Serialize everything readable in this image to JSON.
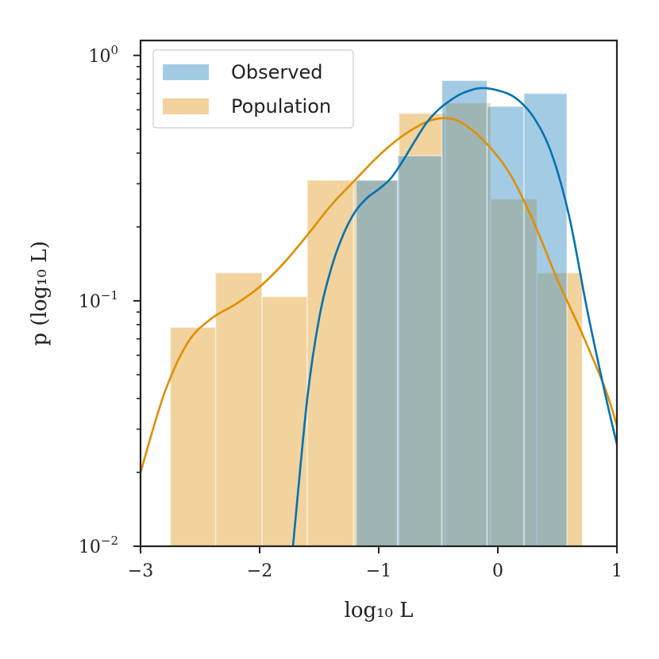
{
  "chart_data": {
    "type": "bar",
    "title": "",
    "xlabel": "log₁₀ L",
    "ylabel": "p (log₁₀ L)",
    "xlim": [
      -3,
      1
    ],
    "ylim": [
      0.01,
      1.15
    ],
    "yscale": "log",
    "grid": false,
    "legend_position": "top-left",
    "x_ticks": [
      {
        "value": -3,
        "label": "−3"
      },
      {
        "value": -2,
        "label": "−2"
      },
      {
        "value": -1,
        "label": "−1"
      },
      {
        "value": 0,
        "label": "0"
      },
      {
        "value": 1,
        "label": "1"
      }
    ],
    "y_ticks": [
      {
        "value": 0.01,
        "base": "10",
        "exp": "−2"
      },
      {
        "value": 0.1,
        "base": "10",
        "exp": "−1"
      },
      {
        "value": 1,
        "base": "10",
        "exp": "0"
      }
    ],
    "series": [
      {
        "name": "Population",
        "type": "histogram",
        "color": "#e6a63c",
        "opacity": 0.5,
        "bins": [
          {
            "x0": -2.75,
            "x1": -2.37,
            "y": 0.078
          },
          {
            "x0": -2.37,
            "x1": -1.98,
            "y": 0.13
          },
          {
            "x0": -1.98,
            "x1": -1.6,
            "y": 0.104
          },
          {
            "x0": -1.6,
            "x1": -1.21,
            "y": 0.31
          },
          {
            "x0": -1.21,
            "x1": -0.83,
            "y": 0.31
          },
          {
            "x0": -0.83,
            "x1": -0.44,
            "y": 0.58
          },
          {
            "x0": -0.44,
            "x1": -0.06,
            "y": 0.64
          },
          {
            "x0": -0.06,
            "x1": 0.33,
            "y": 0.26
          },
          {
            "x0": 0.33,
            "x1": 0.71,
            "y": 0.13
          }
        ]
      },
      {
        "name": "Observed",
        "type": "histogram",
        "color": "#4a98c9",
        "opacity": 0.5,
        "bins": [
          {
            "x0": -1.19,
            "x1": -0.84,
            "y": 0.31
          },
          {
            "x0": -0.84,
            "x1": -0.47,
            "y": 0.39
          },
          {
            "x0": -0.47,
            "x1": -0.09,
            "y": 0.79
          },
          {
            "x0": -0.09,
            "x1": 0.22,
            "y": 0.62
          },
          {
            "x0": 0.22,
            "x1": 0.58,
            "y": 0.7
          }
        ]
      }
    ],
    "curves": [
      {
        "color": "#e08f00",
        "points": [
          [
            -3,
            0.02
          ],
          [
            -2.8,
            0.042
          ],
          [
            -2.6,
            0.068
          ],
          [
            -2.4,
            0.085
          ],
          [
            -2.2,
            0.097
          ],
          [
            -2,
            0.114
          ],
          [
            -1.8,
            0.142
          ],
          [
            -1.6,
            0.185
          ],
          [
            -1.4,
            0.245
          ],
          [
            -1.2,
            0.31
          ],
          [
            -1,
            0.39
          ],
          [
            -0.8,
            0.47
          ],
          [
            -0.6,
            0.535
          ],
          [
            -0.45,
            0.555
          ],
          [
            -0.3,
            0.53
          ],
          [
            -0.1,
            0.44
          ],
          [
            0.1,
            0.33
          ],
          [
            0.3,
            0.21
          ],
          [
            0.5,
            0.122
          ],
          [
            0.7,
            0.075
          ],
          [
            0.9,
            0.044
          ],
          [
            1,
            0.031
          ]
        ]
      },
      {
        "color": "#0072b2",
        "points": [
          [
            -1.72,
            0.01
          ],
          [
            -1.6,
            0.04
          ],
          [
            -1.5,
            0.085
          ],
          [
            -1.4,
            0.135
          ],
          [
            -1.3,
            0.185
          ],
          [
            -1.2,
            0.23
          ],
          [
            -1.1,
            0.262
          ],
          [
            -1,
            0.285
          ],
          [
            -0.9,
            0.315
          ],
          [
            -0.8,
            0.37
          ],
          [
            -0.7,
            0.445
          ],
          [
            -0.6,
            0.53
          ],
          [
            -0.5,
            0.6
          ],
          [
            -0.4,
            0.655
          ],
          [
            -0.3,
            0.7
          ],
          [
            -0.15,
            0.735
          ],
          [
            0,
            0.72
          ],
          [
            0.15,
            0.67
          ],
          [
            0.3,
            0.56
          ],
          [
            0.45,
            0.4
          ],
          [
            0.6,
            0.22
          ],
          [
            0.75,
            0.092
          ],
          [
            0.9,
            0.042
          ],
          [
            1,
            0.026
          ]
        ]
      }
    ]
  }
}
